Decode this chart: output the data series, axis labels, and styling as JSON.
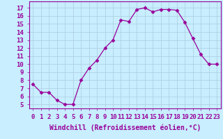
{
  "x": [
    0,
    1,
    2,
    3,
    4,
    5,
    6,
    7,
    8,
    9,
    10,
    11,
    12,
    13,
    14,
    15,
    16,
    17,
    18,
    19,
    20,
    21,
    22,
    23
  ],
  "y": [
    7.5,
    6.5,
    6.5,
    5.5,
    5.0,
    5.0,
    8.0,
    9.5,
    10.5,
    12.0,
    13.0,
    15.5,
    15.3,
    16.8,
    17.0,
    16.5,
    16.8,
    16.8,
    16.7,
    15.2,
    13.2,
    11.2,
    10.0,
    10.0
  ],
  "line_color": "#990099",
  "marker": "D",
  "markersize": 2.5,
  "linewidth": 0.9,
  "bg_color": "#c8eeff",
  "grid_color": "#aaccdd",
  "xlabel": "Windchill (Refroidissement éolien,°C)",
  "xlabel_fontsize": 7,
  "ytick_labels": [
    "5",
    "6",
    "7",
    "8",
    "9",
    "10",
    "11",
    "12",
    "13",
    "14",
    "15",
    "16",
    "17"
  ],
  "ytick_values": [
    5,
    6,
    7,
    8,
    9,
    10,
    11,
    12,
    13,
    14,
    15,
    16,
    17
  ],
  "ylim": [
    4.5,
    17.8
  ],
  "xlim": [
    -0.5,
    23.5
  ],
  "tick_fontsize": 6.5,
  "spine_color": "#990099",
  "label_color": "#990099"
}
